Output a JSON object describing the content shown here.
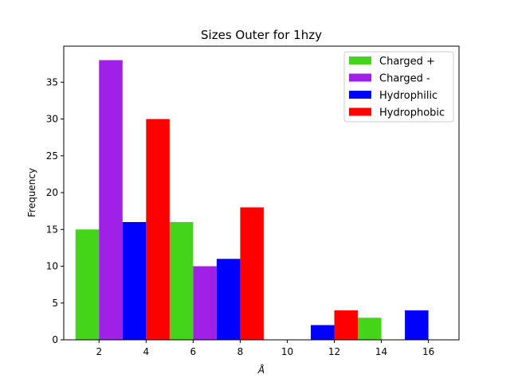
{
  "chart_data": {
    "type": "bar",
    "title": "Sizes Outer for 1hzy",
    "xlabel": "Å",
    "ylabel": "Frequency",
    "legend_position": "top-right",
    "grid": false,
    "xlim": [
      0.5,
      17.3
    ],
    "ylim": [
      0,
      39.9
    ],
    "xticks": [
      2,
      4,
      6,
      8,
      10,
      12,
      14,
      16
    ],
    "yticks": [
      0,
      5,
      10,
      15,
      20,
      25,
      30,
      35
    ],
    "bin_starts": [
      1,
      5,
      9,
      13
    ],
    "bin_width": 4,
    "series": [
      {
        "name": "Charged +",
        "color": "#44d41a",
        "values": [
          15,
          16,
          0,
          3
        ]
      },
      {
        "name": "Charged -",
        "color": "#a020e8",
        "values": [
          38,
          10,
          0,
          0
        ]
      },
      {
        "name": "Hydrophilic",
        "color": "#0000ff",
        "values": [
          16,
          11,
          2,
          4
        ]
      },
      {
        "name": "Hydrophobic",
        "color": "#ff0000",
        "values": [
          30,
          18,
          4,
          0
        ]
      }
    ]
  }
}
